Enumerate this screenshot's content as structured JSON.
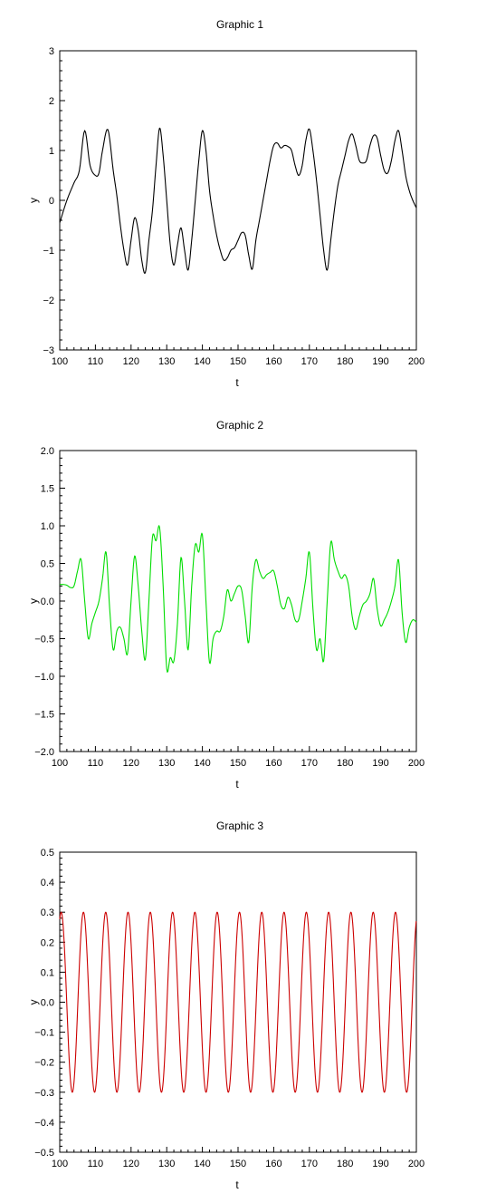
{
  "chart_data": [
    {
      "type": "line",
      "title": "Graphic 1",
      "xlabel": "t",
      "ylabel": "y",
      "xlim": [
        100,
        200
      ],
      "ylim": [
        -3,
        3
      ],
      "xticks": [
        100,
        110,
        120,
        130,
        140,
        150,
        160,
        170,
        180,
        190,
        200
      ],
      "yticks": [
        -3,
        -2,
        -1,
        0,
        1,
        2,
        3
      ],
      "ytick_labels": [
        "−3",
        "−2",
        "−1",
        "0",
        "1",
        "2",
        "3"
      ],
      "grid": false,
      "series": [
        {
          "color": "#000000",
          "x": [
            100,
            102,
            104,
            105.5,
            107,
            108.5,
            110,
            111,
            112,
            113.5,
            115,
            116,
            117,
            118,
            119,
            120,
            121,
            122,
            123,
            124,
            125,
            126,
            127,
            128,
            129,
            130,
            131,
            132,
            133,
            134,
            135,
            136,
            137,
            138,
            139,
            140,
            141,
            142,
            143,
            144,
            145,
            146,
            147,
            148,
            149,
            150,
            151,
            152,
            153,
            154,
            155,
            156,
            157,
            158,
            159,
            160,
            161,
            162,
            163,
            164,
            165,
            166,
            167,
            168,
            169,
            170,
            171,
            172,
            173,
            174,
            175,
            176,
            177,
            178,
            179,
            180,
            181,
            182,
            183,
            184,
            185,
            186,
            187,
            188,
            189,
            190,
            191,
            192,
            193,
            194,
            195,
            196,
            197,
            198,
            199,
            200
          ],
          "y": [
            -0.45,
            0.0,
            0.35,
            0.6,
            1.4,
            0.7,
            0.5,
            0.55,
            1.0,
            1.42,
            0.6,
            0.1,
            -0.5,
            -1.0,
            -1.3,
            -0.8,
            -0.35,
            -0.6,
            -1.2,
            -1.45,
            -0.8,
            -0.2,
            0.7,
            1.45,
            0.9,
            0.0,
            -0.9,
            -1.3,
            -0.9,
            -0.55,
            -1.0,
            -1.4,
            -0.8,
            0.0,
            0.8,
            1.4,
            1.0,
            0.2,
            -0.3,
            -0.7,
            -1.0,
            -1.2,
            -1.15,
            -1.0,
            -0.95,
            -0.8,
            -0.65,
            -0.7,
            -1.1,
            -1.38,
            -0.8,
            -0.4,
            0.0,
            0.4,
            0.8,
            1.1,
            1.15,
            1.05,
            1.1,
            1.08,
            1.0,
            0.7,
            0.5,
            0.7,
            1.2,
            1.43,
            1.0,
            0.4,
            -0.3,
            -1.0,
            -1.4,
            -0.8,
            -0.2,
            0.3,
            0.6,
            0.9,
            1.2,
            1.33,
            1.1,
            0.8,
            0.75,
            0.8,
            1.1,
            1.3,
            1.25,
            0.9,
            0.6,
            0.55,
            0.8,
            1.2,
            1.4,
            1.0,
            0.5,
            0.2,
            0.0,
            -0.15
          ]
        }
      ]
    },
    {
      "type": "line",
      "title": "Graphic 2",
      "xlabel": "t",
      "ylabel": "y",
      "xlim": [
        100,
        200
      ],
      "ylim": [
        -2,
        2
      ],
      "xticks": [
        100,
        110,
        120,
        130,
        140,
        150,
        160,
        170,
        180,
        190,
        200
      ],
      "yticks": [
        -2,
        -1.5,
        -1,
        -0.5,
        0,
        0.5,
        1,
        1.5,
        2
      ],
      "ytick_labels": [
        "−2.0",
        "−1.5",
        "−1.0",
        "−0.5",
        "0.0",
        "0.5",
        "1.0",
        "1.5",
        "2.0"
      ],
      "grid": false,
      "series": [
        {
          "color": "#00dd00",
          "x": [
            100,
            101,
            102,
            103,
            104,
            105,
            106,
            107,
            108,
            109,
            110,
            111,
            112,
            113,
            114,
            115,
            116,
            117,
            118,
            119,
            120,
            121,
            122,
            123,
            124,
            125,
            126,
            127,
            128,
            129,
            130,
            131,
            132,
            133,
            134,
            135,
            136,
            137,
            138,
            139,
            140,
            141,
            142,
            143,
            144,
            145,
            146,
            147,
            148,
            149,
            150,
            151,
            152,
            153,
            154,
            155,
            156,
            157,
            158,
            159,
            160,
            161,
            162,
            163,
            164,
            165,
            166,
            167,
            168,
            169,
            170,
            171,
            172,
            173,
            174,
            175,
            176,
            177,
            178,
            179,
            180,
            181,
            182,
            183,
            184,
            185,
            186,
            187,
            188,
            189,
            190,
            191,
            192,
            193,
            194,
            195,
            196,
            197,
            198,
            199,
            200
          ],
          "y": [
            0.22,
            0.22,
            0.21,
            0.18,
            0.2,
            0.4,
            0.55,
            0.0,
            -0.5,
            -0.3,
            -0.15,
            0.0,
            0.3,
            0.65,
            -0.1,
            -0.65,
            -0.4,
            -0.35,
            -0.5,
            -0.7,
            0.0,
            0.6,
            0.2,
            -0.4,
            -0.78,
            0.0,
            0.85,
            0.8,
            0.98,
            0.2,
            -0.9,
            -0.75,
            -0.8,
            -0.3,
            0.58,
            0.0,
            -0.65,
            0.2,
            0.75,
            0.65,
            0.88,
            0.0,
            -0.82,
            -0.5,
            -0.4,
            -0.4,
            -0.2,
            0.15,
            0.0,
            0.1,
            0.2,
            0.15,
            -0.2,
            -0.55,
            0.2,
            0.55,
            0.4,
            0.3,
            0.35,
            0.38,
            0.4,
            0.2,
            -0.05,
            -0.1,
            0.05,
            -0.05,
            -0.25,
            -0.25,
            0.0,
            0.3,
            0.65,
            -0.1,
            -0.65,
            -0.5,
            -0.8,
            0.0,
            0.78,
            0.55,
            0.4,
            0.3,
            0.35,
            0.2,
            -0.2,
            -0.38,
            -0.2,
            -0.05,
            0.0,
            0.1,
            0.3,
            -0.1,
            -0.33,
            -0.25,
            -0.15,
            0.0,
            0.2,
            0.55,
            -0.15,
            -0.55,
            -0.35,
            -0.25,
            -0.28
          ]
        }
      ]
    },
    {
      "type": "line",
      "title": "Graphic 3",
      "xlabel": "t",
      "ylabel": "y",
      "xlim": [
        100,
        200
      ],
      "ylim": [
        -0.5,
        0.5
      ],
      "xticks": [
        100,
        110,
        120,
        130,
        140,
        150,
        160,
        170,
        180,
        190,
        200
      ],
      "yticks": [
        -0.5,
        -0.4,
        -0.3,
        -0.2,
        -0.1,
        0,
        0.1,
        0.2,
        0.3,
        0.4,
        0.5
      ],
      "ytick_labels": [
        "−0.5",
        "−0.4",
        "−0.3",
        "−0.2",
        "−0.1",
        "0.0",
        "0.1",
        "0.2",
        "0.3",
        "0.4",
        "0.5"
      ],
      "grid": false,
      "series": [
        {
          "color": "#cc0000",
          "function": "0.3*cos(2*pi*(t-100.4)/6.25)",
          "amplitude": 0.3,
          "period": 6.25
        }
      ]
    }
  ]
}
